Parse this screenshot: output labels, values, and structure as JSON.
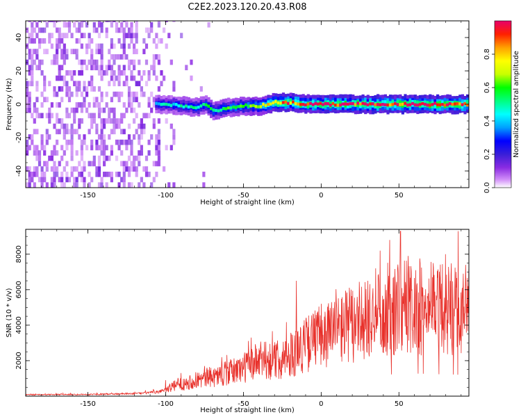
{
  "figure": {
    "title": "C2E2.2023.120.20.43.R08"
  },
  "chart_data": [
    {
      "type": "heatmap",
      "xlabel": "Height of straight line (km)",
      "ylabel": "Frequency (Hz)",
      "xlim": [
        -190,
        95
      ],
      "ylim": [
        -50,
        50
      ],
      "xticks": [
        -150,
        -100,
        -50,
        0,
        50
      ],
      "yticks": [
        -40,
        -20,
        0,
        20,
        40
      ],
      "colorbar": {
        "label": "Normalized spectral amplitude",
        "range": [
          0,
          1
        ],
        "ticks": [
          0.0,
          0.2,
          0.4,
          0.6,
          0.8
        ],
        "colormap": [
          "#ffffff",
          "#d08cf8",
          "#8a2be2",
          "#3a1fd8",
          "#0000ff",
          "#00a0ff",
          "#00ffff",
          "#00ff80",
          "#00ff00",
          "#c8ff00",
          "#ffff00",
          "#ffa000",
          "#ff2000",
          "#e8006a"
        ]
      },
      "description_of_pattern": {
        "noise_region_x": [
          -190,
          -95
        ],
        "signal_band_x": [
          -107,
          95
        ],
        "signal_center_freq_hz": [
          [
            -107,
            0
          ],
          [
            -100,
            0
          ],
          [
            -90,
            -1
          ],
          [
            -80,
            -2
          ],
          [
            -75,
            0
          ],
          [
            -70,
            -4
          ],
          [
            -60,
            -2
          ],
          [
            -50,
            -1
          ],
          [
            -40,
            -1
          ],
          [
            -30,
            1
          ],
          [
            -20,
            1
          ],
          [
            -10,
            0
          ],
          [
            0,
            0
          ],
          [
            10,
            0
          ],
          [
            30,
            0
          ],
          [
            50,
            0
          ],
          [
            70,
            0
          ],
          [
            90,
            0
          ]
        ],
        "signal_peak_amplitude": [
          [
            -107,
            0.45
          ],
          [
            -90,
            0.5
          ],
          [
            -70,
            0.55
          ],
          [
            -50,
            0.6
          ],
          [
            -30,
            0.85
          ],
          [
            -20,
            0.9
          ],
          [
            0,
            0.95
          ],
          [
            50,
            0.95
          ],
          [
            90,
            0.95
          ]
        ]
      }
    },
    {
      "type": "line",
      "xlabel": "Height of straight line (km)",
      "ylabel": "SNR (10 * v/v)",
      "xlim": [
        -190,
        95
      ],
      "ylim": [
        0,
        9400
      ],
      "xticks": [
        -150,
        -100,
        -50,
        0,
        50
      ],
      "yticks": [
        2000,
        4000,
        6000,
        8000
      ],
      "series": [
        {
          "color": "#e8302a",
          "envelope_trend": [
            [
              -190,
              80
            ],
            [
              -150,
              100
            ],
            [
              -120,
              140
            ],
            [
              -105,
              220
            ],
            [
              -100,
              400
            ],
            [
              -90,
              700
            ],
            [
              -80,
              900
            ],
            [
              -70,
              1100
            ],
            [
              -60,
              1300
            ],
            [
              -50,
              1600
            ],
            [
              -40,
              2000
            ],
            [
              -30,
              2000
            ],
            [
              -20,
              2300
            ],
            [
              -10,
              2900
            ],
            [
              0,
              3400
            ],
            [
              10,
              3700
            ],
            [
              20,
              4100
            ],
            [
              30,
              4500
            ],
            [
              40,
              4800
            ],
            [
              50,
              5000
            ],
            [
              60,
              5100
            ],
            [
              70,
              5000
            ],
            [
              80,
              4900
            ],
            [
              95,
              4800
            ]
          ],
          "notable_peaks": [
            [
              -100,
              900
            ],
            [
              -75,
              1700
            ],
            [
              -45,
              3300
            ],
            [
              -16,
              6500
            ],
            [
              -5,
              4600
            ],
            [
              10,
              5000
            ],
            [
              30,
              6500
            ],
            [
              38,
              8200
            ],
            [
              44,
              8800
            ],
            [
              51,
              9300
            ],
            [
              56,
              7900
            ],
            [
              72,
              7500
            ],
            [
              80,
              8000
            ],
            [
              88,
              9300
            ],
            [
              93,
              7400
            ]
          ]
        }
      ]
    }
  ]
}
